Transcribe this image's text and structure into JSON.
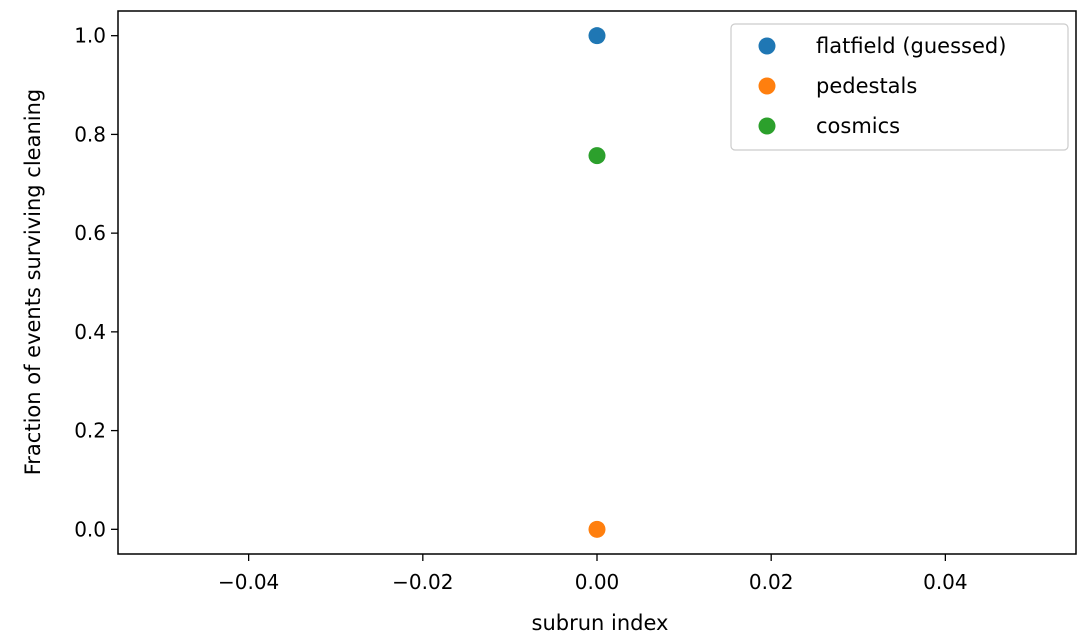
{
  "chart_data": {
    "type": "scatter",
    "title": "",
    "xlabel": "subrun index",
    "ylabel": "Fraction of events surviving cleaning",
    "xlim": [
      -0.055,
      0.055
    ],
    "ylim": [
      -0.05,
      1.05
    ],
    "xticks": [
      -0.04,
      -0.02,
      0.0,
      0.02,
      0.04
    ],
    "xtick_labels": [
      "−0.04",
      "−0.02",
      "0.00",
      "0.02",
      "0.04"
    ],
    "yticks": [
      0.0,
      0.2,
      0.4,
      0.6,
      0.8,
      1.0
    ],
    "ytick_labels": [
      "0.0",
      "0.2",
      "0.4",
      "0.6",
      "0.8",
      "1.0"
    ],
    "grid": false,
    "legend_position": "top-right",
    "series": [
      {
        "name": "flatfield (guessed)",
        "color": "#1f77b4",
        "points": [
          {
            "x": 0.0,
            "y": 1.0
          }
        ]
      },
      {
        "name": "pedestals",
        "color": "#ff7f0e",
        "points": [
          {
            "x": 0.0,
            "y": 0.0
          }
        ]
      },
      {
        "name": "cosmics",
        "color": "#2ca02c",
        "points": [
          {
            "x": 0.0,
            "y": 0.757
          }
        ]
      }
    ]
  }
}
